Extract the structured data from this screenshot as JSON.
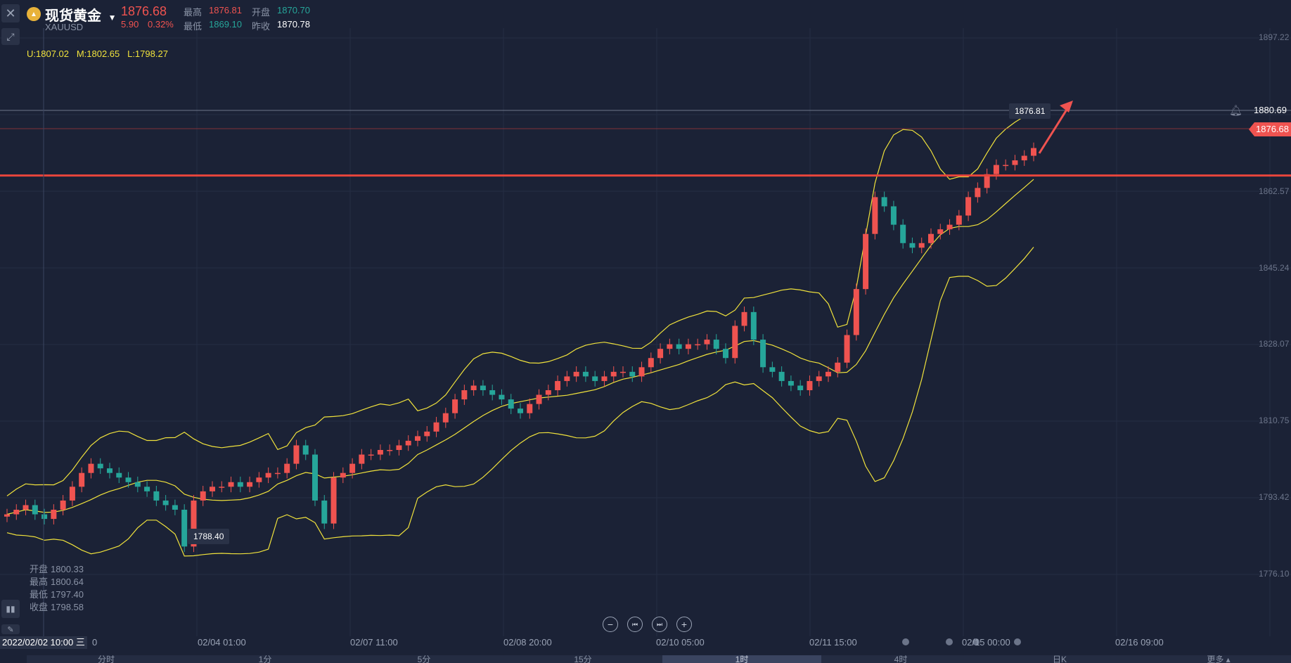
{
  "header": {
    "title": "现货黄金",
    "symbol": "XAUUSD",
    "price": "1876.68",
    "change": "5.90",
    "change_pct": "0.32%",
    "high_label": "最高",
    "high": "1876.81",
    "open_label": "开盘",
    "open": "1870.70",
    "low_label": "最低",
    "low": "1869.10",
    "prev_close_label": "昨收",
    "prev_close": "1870.78"
  },
  "indicator": {
    "text": "U:1807.02   M:1802.65   L:1798.27"
  },
  "ohlc_panel": {
    "open_label": "开盘",
    "open": "1800.33",
    "high_label": "最高",
    "high": "1800.64",
    "low_label": "最低",
    "low": "1797.40",
    "close_label": "收盘",
    "close": "1798.58"
  },
  "callouts": {
    "max_label": "1876.81",
    "min_label": "1788.40",
    "line_price": "1880.69",
    "current_price": "1876.68"
  },
  "cursor_date": "2022/02/02 10:00  三",
  "x_axis": {
    "ticks": [
      "0",
      "02/04 01:00",
      "02/07 11:00",
      "02/08 20:00",
      "02/10 05:00",
      "02/11 15:00",
      "02/15 00:00",
      "02/16 09:00"
    ]
  },
  "y_axis": {
    "ticks": [
      "1897.22",
      "1862.57",
      "1845.24",
      "1828.07",
      "1810.75",
      "1793.42",
      "1776.10"
    ]
  },
  "tabs": [
    {
      "label": "分时",
      "active": false
    },
    {
      "label": "1分",
      "active": false
    },
    {
      "label": "5分",
      "active": false
    },
    {
      "label": "15分",
      "active": false
    },
    {
      "label": "1时",
      "active": true
    },
    {
      "label": "4时",
      "active": false
    },
    {
      "label": "日K",
      "active": false
    },
    {
      "label": "更多 ▴",
      "active": false
    }
  ],
  "icons": {
    "close": "close-icon",
    "draw": "draw-tool-icon",
    "dropdown": "caret-down-icon",
    "bell": "bell-icon"
  },
  "colors": {
    "up": "#ef5350",
    "down": "#26a69a",
    "band": "#f0e23c",
    "background": "#1b2236"
  },
  "chart_data": {
    "type": "candlestick",
    "y_unit": "price",
    "ylim": [
      1772,
      1902
    ],
    "x": [
      "02/02 10:00",
      "02/04 01:00",
      "02/07 11:00",
      "02/08 20:00",
      "02/10 05:00",
      "02/11 15:00",
      "02/15 00:00",
      "02/16 09:00"
    ],
    "close_path": [
      1797,
      1798,
      1799,
      1797,
      1796,
      1798,
      1800,
      1803,
      1806,
      1808,
      1807,
      1806,
      1805,
      1804,
      1803,
      1802,
      1800,
      1799,
      1798,
      1790,
      1800,
      1802,
      1803,
      1803,
      1804,
      1803,
      1804,
      1805,
      1806,
      1806,
      1808,
      1812,
      1810,
      1800,
      1795,
      1805,
      1806,
      1808,
      1810,
      1810,
      1811,
      1811,
      1812,
      1813,
      1814,
      1815,
      1817,
      1819,
      1822,
      1824,
      1825,
      1824,
      1823,
      1822,
      1820,
      1819,
      1821,
      1823,
      1824,
      1826,
      1827,
      1828,
      1827,
      1826,
      1827,
      1828,
      1828,
      1827,
      1829,
      1831,
      1833,
      1834,
      1833,
      1834,
      1834,
      1835,
      1833,
      1831,
      1838,
      1841,
      1835,
      1829,
      1828,
      1826,
      1825,
      1824,
      1826,
      1827,
      1828,
      1830,
      1836,
      1846,
      1858,
      1866,
      1864,
      1860,
      1856,
      1855,
      1856,
      1858,
      1859,
      1860,
      1862,
      1866,
      1868,
      1871,
      1873,
      1873,
      1874,
      1875,
      1876.68
    ],
    "annotations": {
      "max": 1876.81,
      "min": 1788.4,
      "resistance": 1870.7
    }
  }
}
